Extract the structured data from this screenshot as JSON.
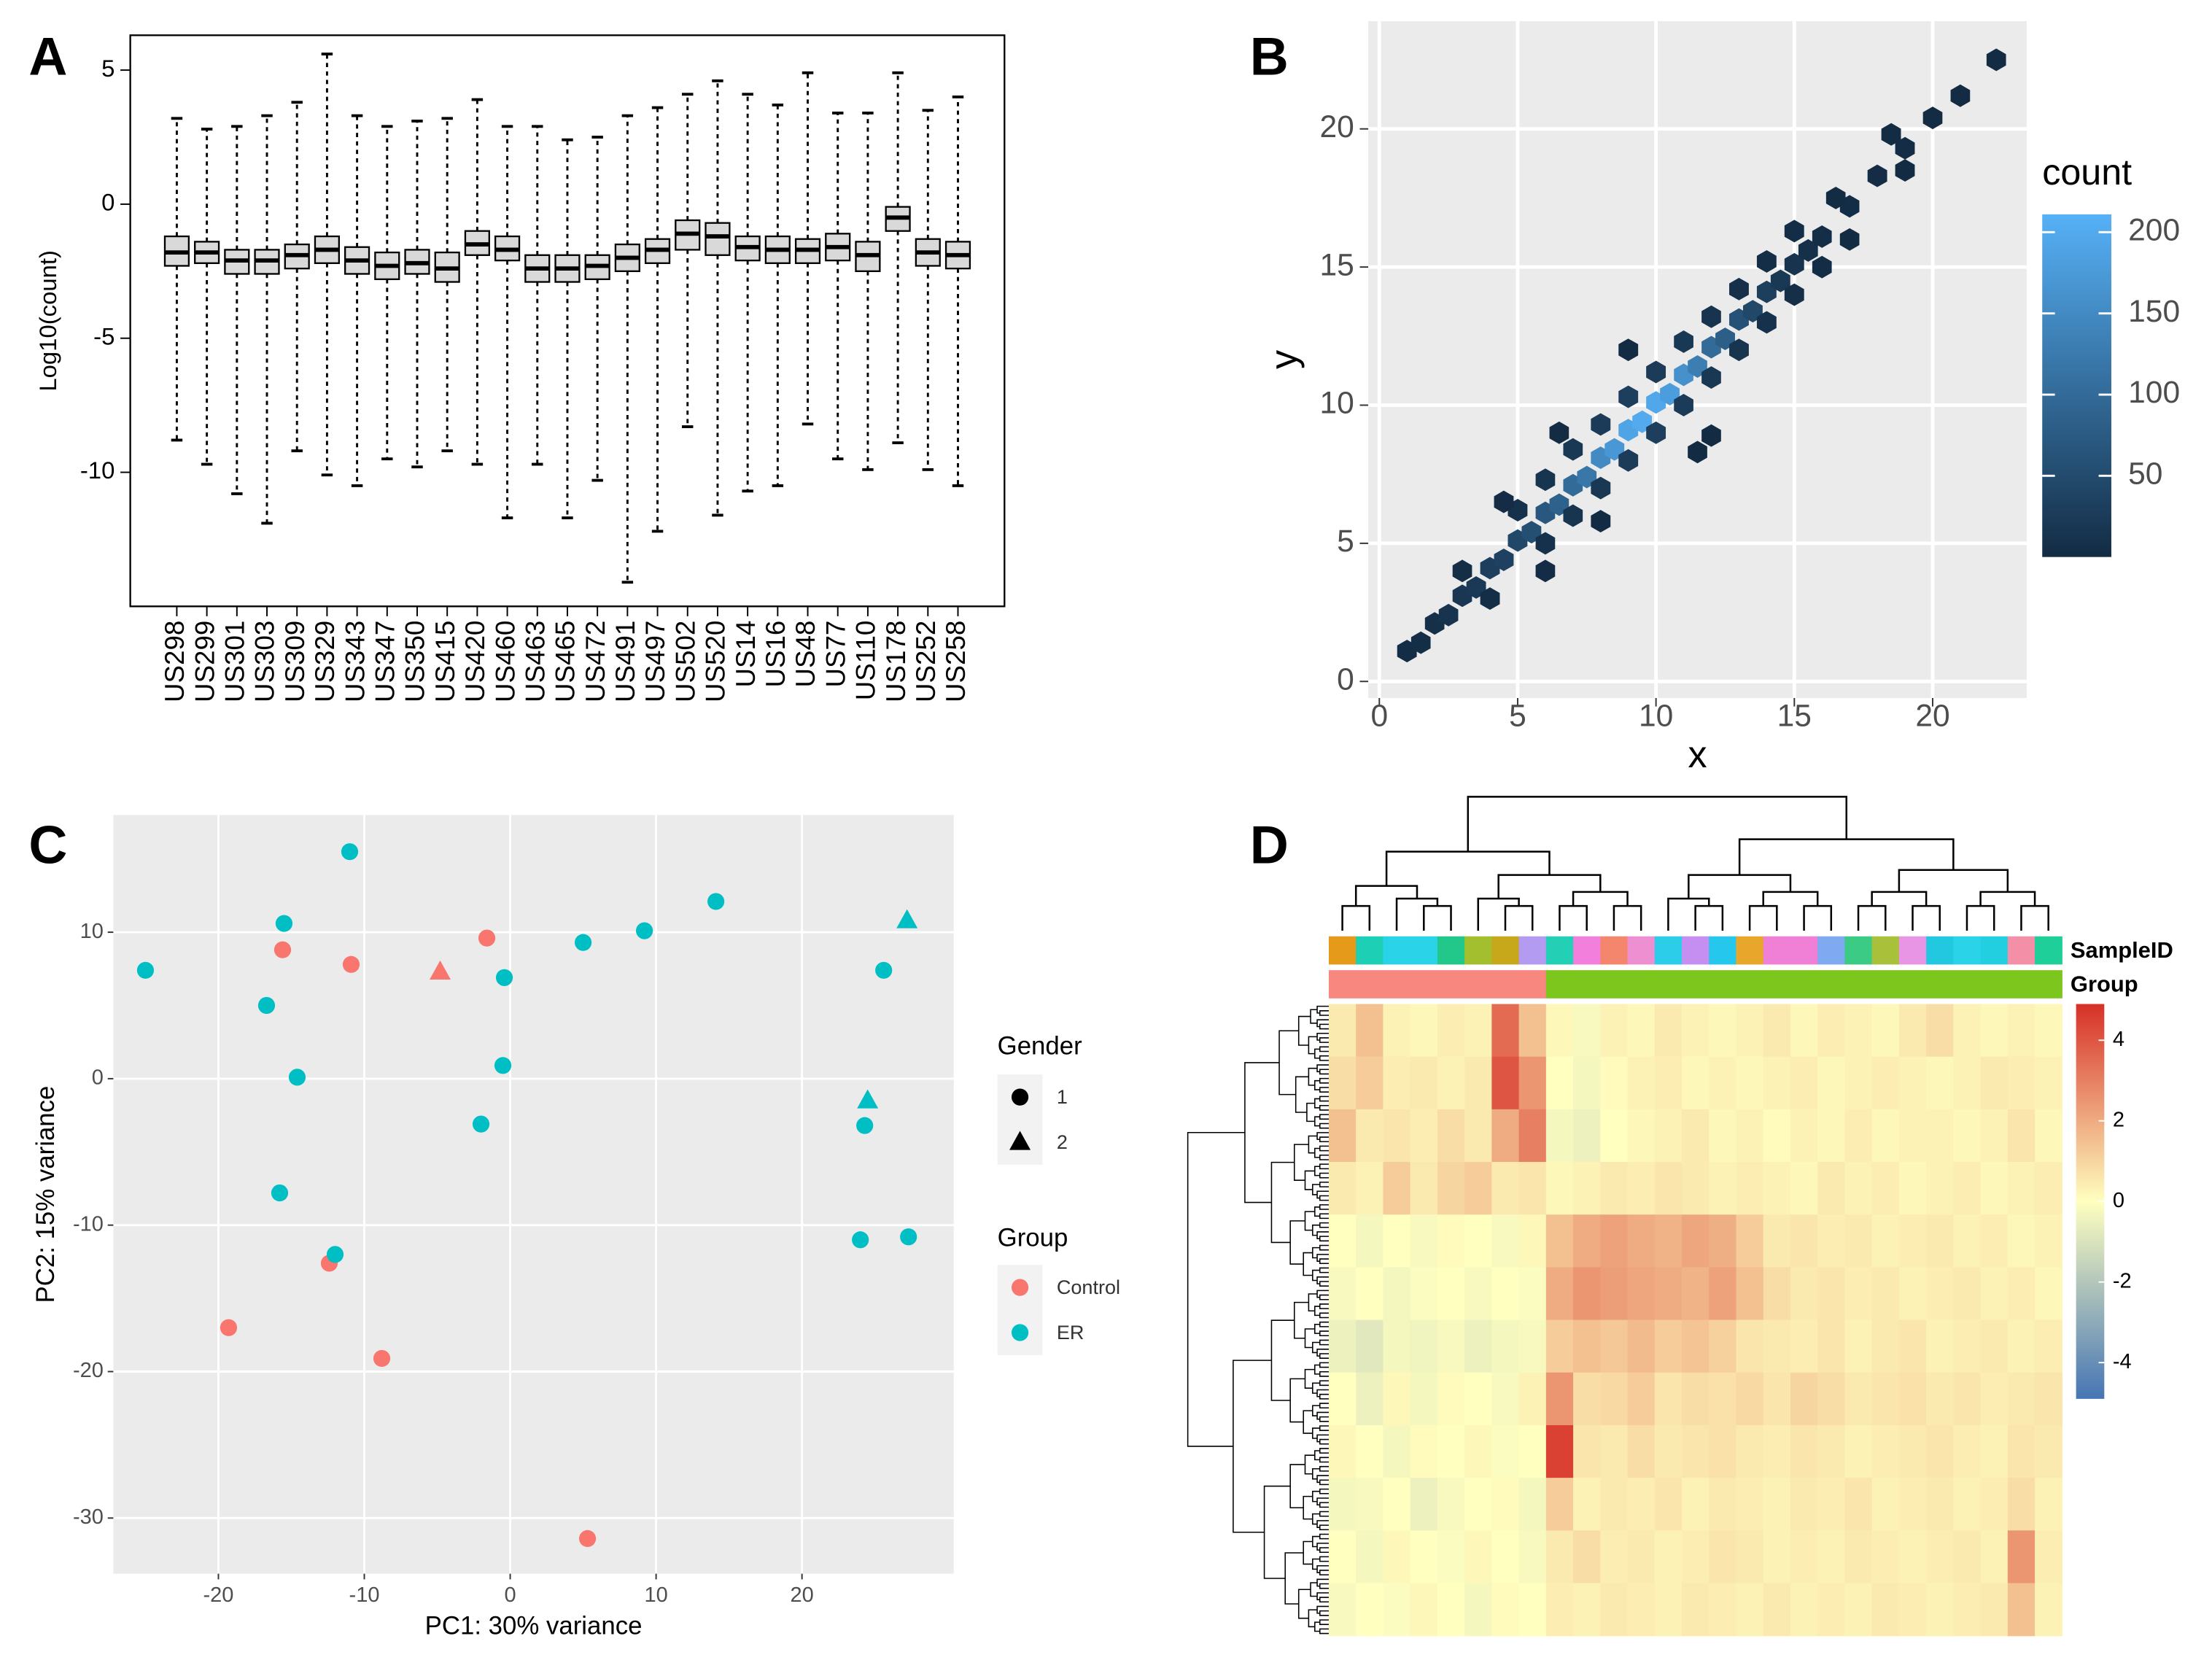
{
  "chart_data": [
    {
      "type": "box",
      "panel_label": "A",
      "ylabel": "Log10(count)",
      "categories": [
        "US298",
        "US299",
        "US301",
        "US303",
        "US309",
        "US329",
        "US343",
        "US347",
        "US350",
        "US415",
        "US420",
        "US460",
        "US463",
        "US465",
        "US472",
        "US491",
        "US497",
        "US502",
        "US520",
        "US14",
        "US16",
        "US48",
        "US77",
        "US110",
        "US178",
        "US252",
        "US258"
      ],
      "whisker_low": [
        -8.8,
        -9.7,
        -10.8,
        -11.9,
        -9.2,
        -10.1,
        -10.5,
        -9.5,
        -9.8,
        -9.2,
        -9.7,
        -11.7,
        -9.7,
        -11.7,
        -10.3,
        -14.1,
        -12.2,
        -8.3,
        -11.6,
        -10.7,
        -10.5,
        -8.2,
        -9.5,
        -9.9,
        -8.9,
        -9.9,
        -10.5
      ],
      "q1": [
        -2.3,
        -2.2,
        -2.6,
        -2.6,
        -2.4,
        -2.2,
        -2.6,
        -2.8,
        -2.6,
        -2.9,
        -1.9,
        -2.1,
        -2.9,
        -2.9,
        -2.8,
        -2.5,
        -2.2,
        -1.7,
        -1.9,
        -2.1,
        -2.2,
        -2.2,
        -2.1,
        -2.5,
        -1.0,
        -2.3,
        -2.4
      ],
      "median": [
        -1.8,
        -1.8,
        -2.1,
        -2.1,
        -1.9,
        -1.7,
        -2.1,
        -2.3,
        -2.2,
        -2.4,
        -1.5,
        -1.7,
        -2.4,
        -2.4,
        -2.3,
        -2.0,
        -1.7,
        -1.1,
        -1.2,
        -1.6,
        -1.7,
        -1.7,
        -1.6,
        -1.9,
        -0.5,
        -1.8,
        -1.9
      ],
      "q3": [
        -1.2,
        -1.4,
        -1.7,
        -1.7,
        -1.5,
        -1.2,
        -1.6,
        -1.8,
        -1.7,
        -1.8,
        -1.0,
        -1.2,
        -1.9,
        -1.9,
        -1.9,
        -1.5,
        -1.3,
        -0.6,
        -0.7,
        -1.2,
        -1.2,
        -1.3,
        -1.1,
        -1.4,
        -0.1,
        -1.3,
        -1.4
      ],
      "whisker_high": [
        3.2,
        2.8,
        2.9,
        3.3,
        3.8,
        5.6,
        3.3,
        2.9,
        3.1,
        3.2,
        3.9,
        2.9,
        2.9,
        2.4,
        2.5,
        3.3,
        3.6,
        4.1,
        4.6,
        4.1,
        3.7,
        4.9,
        3.4,
        3.4,
        4.9,
        3.5,
        4.0
      ],
      "ylim": [
        -15,
        6.3
      ],
      "yticks": [
        5,
        0,
        -5,
        -10
      ],
      "color": "#d9d9d9"
    },
    {
      "type": "hexbin",
      "panel_label": "B",
      "xlabel": "x",
      "ylabel": "y",
      "x": [
        1,
        1.5,
        2,
        2.5,
        3,
        3.5,
        4,
        4.5,
        5,
        5.5,
        6,
        6.5,
        7,
        7.5,
        8,
        8.5,
        9,
        9.5,
        10,
        10.5,
        11,
        11.5,
        12,
        12.5,
        13,
        13.5,
        14,
        14.5,
        15,
        15.5,
        16,
        17,
        18,
        19,
        20,
        21,
        22.3,
        4,
        3,
        6,
        5,
        7,
        6,
        8,
        7,
        9,
        8,
        10,
        9,
        11,
        10,
        12,
        11,
        13,
        12,
        14,
        13,
        15,
        14,
        16,
        15,
        6,
        4.5,
        8,
        6.5,
        11.5,
        9,
        12,
        17,
        16.5,
        19,
        18.5
      ],
      "y": [
        1.1,
        1.4,
        2.1,
        2.4,
        3.1,
        3.4,
        4.1,
        4.4,
        5.1,
        5.4,
        6.1,
        6.4,
        7.1,
        7.4,
        8.1,
        8.4,
        9.1,
        9.4,
        10.1,
        10.4,
        11.1,
        11.4,
        12.1,
        12.4,
        13.1,
        13.4,
        14.1,
        14.5,
        15.1,
        15.6,
        16.1,
        17.2,
        18.3,
        19.3,
        20.4,
        21.2,
        22.5,
        3,
        4,
        5,
        6.2,
        6,
        7.3,
        7,
        8.4,
        8,
        9.3,
        9,
        10.3,
        10,
        11.2,
        11,
        12.3,
        12,
        13.2,
        13,
        14.2,
        14,
        15.2,
        15,
        16.3,
        4,
        6.5,
        5.8,
        9,
        8.3,
        12,
        8.9,
        16,
        17.5,
        18.5,
        19.8
      ],
      "counts": [
        3,
        5,
        8,
        12,
        18,
        22,
        30,
        35,
        45,
        55,
        70,
        85,
        100,
        120,
        150,
        170,
        190,
        200,
        195,
        180,
        160,
        130,
        100,
        80,
        60,
        45,
        30,
        20,
        12,
        8,
        5,
        3,
        2,
        2,
        1,
        1,
        1,
        5,
        4,
        10,
        10,
        15,
        15,
        20,
        20,
        25,
        25,
        30,
        30,
        25,
        25,
        20,
        20,
        15,
        12,
        10,
        8,
        6,
        5,
        3,
        3,
        2,
        2,
        1,
        1,
        1,
        1,
        1,
        1,
        1,
        1,
        1
      ],
      "xlim": [
        -0.4,
        23.4
      ],
      "ylim": [
        -0.6,
        23.9
      ],
      "xticks": [
        0,
        5,
        10,
        15,
        20
      ],
      "yticks": [
        0,
        5,
        10,
        15,
        20
      ],
      "grid": true,
      "colorbar": {
        "title": "count",
        "lim": [
          0,
          211
        ],
        "ticks": [
          50,
          100,
          150,
          200
        ],
        "colors": [
          "#132B43",
          "#56B1F7"
        ]
      }
    },
    {
      "type": "scatter",
      "panel_label": "C",
      "xlabel": "PC1: 30% variance",
      "ylabel": "PC2: 15% variance",
      "series": [
        {
          "name": "Control",
          "color": "#F8766D",
          "x": [
            -15.6,
            -10.9,
            -1.6,
            -12.4,
            -19.3,
            -8.8,
            5.3,
            -4.8
          ],
          "y": [
            8.8,
            7.8,
            9.6,
            -12.6,
            -17,
            -19.1,
            -31.4,
            7.3
          ],
          "gender": [
            "1",
            "1",
            "1",
            "1",
            "1",
            "1",
            "1",
            "2"
          ]
        },
        {
          "name": "ER",
          "color": "#00BFC4",
          "x": [
            -25,
            -11,
            -15.5,
            -16.7,
            -14.6,
            -15.8,
            -12,
            -0.4,
            -0.5,
            -2,
            5,
            9.2,
            14.1,
            25.6,
            24.3,
            24,
            27.3,
            27.2,
            24.5
          ],
          "y": [
            7.4,
            15.5,
            10.6,
            5,
            0.1,
            -7.8,
            -12,
            6.9,
            0.9,
            -3.1,
            9.3,
            10.1,
            12.1,
            7.4,
            -3.2,
            -11,
            -10.8,
            10.8,
            -1.5
          ],
          "gender": [
            "1",
            "1",
            "1",
            "1",
            "1",
            "1",
            "1",
            "1",
            "1",
            "1",
            "1",
            "1",
            "1",
            "1",
            "1",
            "1",
            "1",
            "2",
            "2"
          ]
        }
      ],
      "shape_legend": {
        "title": "Gender",
        "levels": [
          "1",
          "2"
        ]
      },
      "color_legend_title": "Group",
      "xlim": [
        -27.2,
        30.4
      ],
      "ylim": [
        -33.8,
        18
      ],
      "xticks": [
        -20,
        -10,
        0,
        10,
        20
      ],
      "yticks": [
        10,
        0,
        -10,
        -20,
        -30
      ],
      "grid": true
    },
    {
      "type": "heatmap",
      "panel_label": "D",
      "annotation_labels": [
        "SampleID",
        "Group"
      ],
      "values": [
        [
          0.5,
          1.5,
          0.3,
          0.2,
          0.4,
          0.3,
          3.5,
          1.5,
          0.2,
          -0.2,
          0.3,
          0.2,
          0.5,
          0.3,
          0.2,
          0.3,
          0.5,
          0.2,
          0.4,
          0.3,
          0.2,
          0.5,
          0.8,
          0.3,
          0.2,
          0.3,
          0.2
        ],
        [
          0.8,
          1.2,
          0.4,
          0.5,
          0.3,
          0.5,
          4,
          2.5,
          0,
          -0.3,
          0.1,
          0.3,
          0.4,
          0.2,
          0.3,
          0.2,
          0.3,
          0.4,
          0.2,
          0.3,
          0.4,
          0.3,
          0.2,
          0.3,
          0.5,
          0.4,
          0.3
        ],
        [
          1.5,
          0.5,
          0.6,
          0.4,
          0.8,
          0.5,
          2,
          3,
          -0.3,
          -0.5,
          0,
          0.2,
          0.3,
          0.5,
          0.2,
          0.3,
          0.1,
          0.3,
          0.2,
          0.4,
          0.2,
          0.3,
          0.3,
          0.2,
          0.3,
          0.6,
          0.2
        ],
        [
          0.5,
          0.3,
          1.2,
          0.5,
          1.0,
          1.2,
          0.5,
          0.6,
          0.2,
          0.3,
          0.5,
          0.4,
          0.6,
          0.5,
          0.3,
          0.4,
          0.3,
          0.2,
          0.5,
          0.3,
          0.4,
          0.2,
          0.3,
          0.4,
          0.2,
          0.3,
          0.4
        ],
        [
          0,
          -0.3,
          0,
          -0.2,
          0.1,
          0,
          -0.2,
          0.2,
          1.5,
          2,
          2.2,
          2,
          1.8,
          2.1,
          1.9,
          1.2,
          0.5,
          0.6,
          0.4,
          0.5,
          0.3,
          0.4,
          0.5,
          0.3,
          0.4,
          0.2,
          0.3
        ],
        [
          -0.2,
          0,
          -0.3,
          -0.1,
          0,
          -0.2,
          0,
          -0.1,
          2,
          2.5,
          2.3,
          2.1,
          2,
          1.8,
          2.2,
          1.5,
          0.8,
          0.5,
          0.6,
          0.4,
          0.5,
          0.3,
          0.4,
          0.5,
          0.3,
          0.4,
          0.2
        ],
        [
          -0.5,
          -0.8,
          -0.3,
          -0.4,
          -0.2,
          -0.5,
          -0.3,
          -0.2,
          1.2,
          1.5,
          1.3,
          1.6,
          1.2,
          1.4,
          1.1,
          0.6,
          0.5,
          0.4,
          0.6,
          0.3,
          0.5,
          0.6,
          0.3,
          0.4,
          0.5,
          0.3,
          0.4
        ],
        [
          0,
          -0.5,
          0.2,
          -0.3,
          0.1,
          0,
          -0.2,
          0.3,
          2.5,
          0.8,
          0.9,
          1.2,
          0.6,
          0.8,
          0.7,
          0.9,
          0.6,
          1,
          0.8,
          0.5,
          0.6,
          0.7,
          0.5,
          0.6,
          0.4,
          0.5,
          0.6
        ],
        [
          0.2,
          0,
          -0.3,
          0.1,
          0,
          0.2,
          -0.1,
          0,
          4.5,
          0.6,
          0.5,
          0.8,
          0.5,
          0.6,
          0.7,
          0.5,
          0.4,
          0.6,
          0.5,
          0.3,
          0.4,
          0.5,
          0.6,
          0.4,
          0.3,
          0.6,
          0.5
        ],
        [
          -0.3,
          -0.2,
          0,
          -0.5,
          -0.2,
          0,
          0.1,
          -0.3,
          1.2,
          0.3,
          0.5,
          0.4,
          0.6,
          0.3,
          0.5,
          0.4,
          0.3,
          0.5,
          0.4,
          0.6,
          0.3,
          0.4,
          0.5,
          0.3,
          0.4,
          0.8,
          0.3
        ],
        [
          0,
          -0.3,
          0.2,
          0,
          -0.1,
          0.2,
          0,
          -0.2,
          0.5,
          0.8,
          0.4,
          0.5,
          0.3,
          0.4,
          0.6,
          0.5,
          0.3,
          0.4,
          0.3,
          0.5,
          0.4,
          0.3,
          0.4,
          0.5,
          0.3,
          2.5,
          0.4
        ],
        [
          -0.2,
          0,
          -0.1,
          0.2,
          0,
          -0.3,
          0.1,
          0,
          0.4,
          0.3,
          0.5,
          0.4,
          0.3,
          0.5,
          0.4,
          0.3,
          0.5,
          0.3,
          0.4,
          0.3,
          0.5,
          0.4,
          0.3,
          0.4,
          0.5,
          1.5,
          0.3
        ]
      ],
      "sample_colors": [
        "#E69A1A",
        "#1CCFB5",
        "#2BD3E8",
        "#2BD3E8",
        "#22C78A",
        "#A3BF2E",
        "#C8A81B",
        "#B39BF2",
        "#23D0B5",
        "#F17FDB",
        "#F5866E",
        "#EE8FD2",
        "#2CCDE8",
        "#C48FF0",
        "#25C8EC",
        "#E8A62B",
        "#F07FD6",
        "#F07FD6",
        "#7FA9F0",
        "#3CCB85",
        "#A9C03A",
        "#E995E5",
        "#22C8E0",
        "#2BD3E8",
        "#22CFE0",
        "#F48FA8",
        "#1FCF9A"
      ],
      "group_colors": [
        "#F8877F",
        "#F8877F",
        "#F8877F",
        "#F8877F",
        "#F8877F",
        "#F8877F",
        "#F8877F",
        "#F8877F",
        "#7CC61D",
        "#7CC61D",
        "#7CC61D",
        "#7CC61D",
        "#7CC61D",
        "#7CC61D",
        "#7CC61D",
        "#7CC61D",
        "#7CC61D",
        "#7CC61D",
        "#7CC61D",
        "#7CC61D",
        "#7CC61D",
        "#7CC61D",
        "#7CC61D",
        "#7CC61D",
        "#7CC61D",
        "#7CC61D",
        "#7CC61D"
      ],
      "colorbar": {
        "lim": [
          -4.9,
          4.9
        ],
        "ticks": [
          4,
          2,
          0,
          -2,
          -4
        ],
        "colors": [
          "#4575B4",
          "#FFFFBF",
          "#D73027"
        ]
      }
    }
  ]
}
